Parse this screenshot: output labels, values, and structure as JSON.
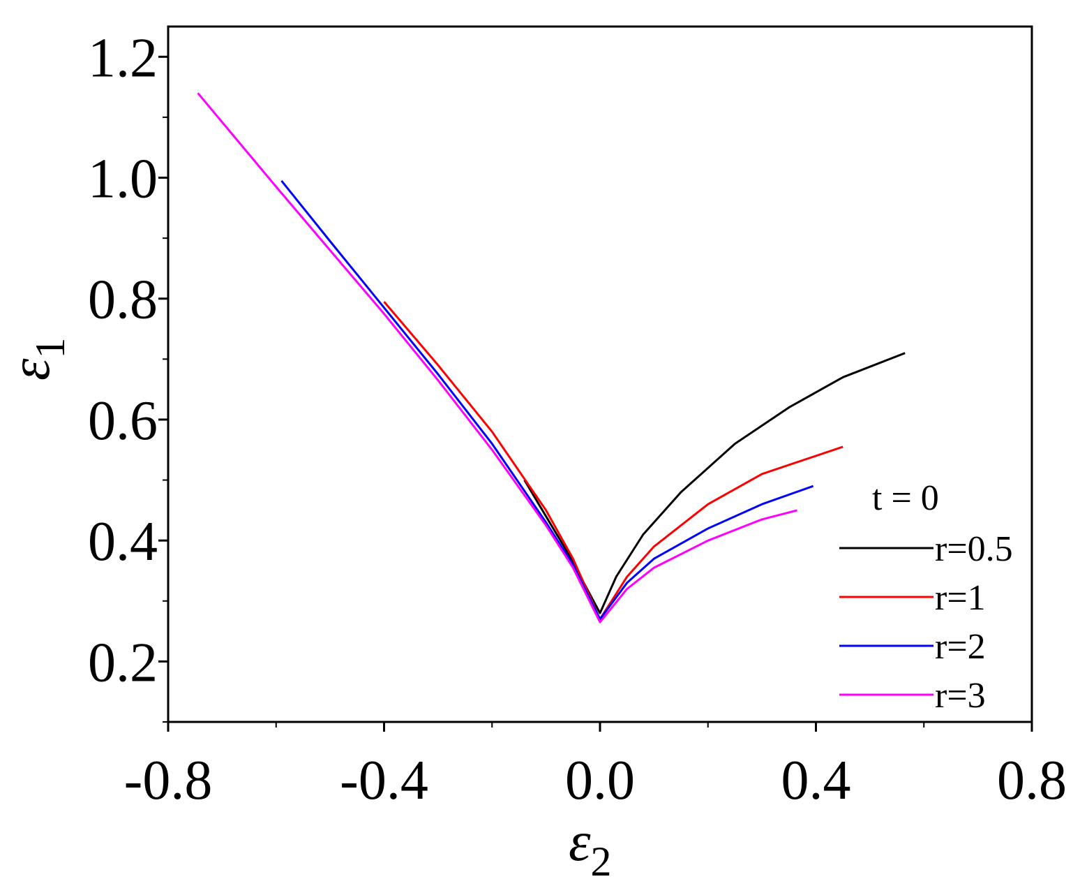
{
  "chart_data": {
    "type": "line",
    "xlabel": "ε",
    "xlabel_sub": "2",
    "ylabel": "ε",
    "ylabel_sub": "1",
    "xlim": [
      -0.8,
      0.8
    ],
    "ylim": [
      0.1,
      1.25
    ],
    "x_ticks": [
      -0.8,
      -0.4,
      0.0,
      0.4,
      0.8
    ],
    "x_tick_labels": [
      "-0.8",
      "-0.4",
      "0.0",
      "0.4",
      "0.8"
    ],
    "y_ticks": [
      0.2,
      0.4,
      0.6,
      0.8,
      1.0,
      1.2
    ],
    "y_tick_labels": [
      "0.2",
      "0.4",
      "0.6",
      "0.8",
      "1.0",
      "1.2"
    ],
    "grid": false,
    "legend_title": "t = 0",
    "legend_position": "bottom-right",
    "series": [
      {
        "name": "r=0.5",
        "color": "#000000",
        "x": [
          -0.14,
          -0.1,
          -0.06,
          -0.03,
          0.0,
          0.03,
          0.08,
          0.15,
          0.25,
          0.35,
          0.45,
          0.565
        ],
        "y": [
          0.5,
          0.44,
          0.38,
          0.33,
          0.28,
          0.34,
          0.41,
          0.48,
          0.56,
          0.62,
          0.67,
          0.71
        ]
      },
      {
        "name": "r=1",
        "color": "#ff0000",
        "x": [
          -0.4,
          -0.3,
          -0.2,
          -0.1,
          -0.05,
          0.0,
          0.05,
          0.1,
          0.2,
          0.3,
          0.45
        ],
        "y": [
          0.795,
          0.69,
          0.58,
          0.45,
          0.37,
          0.27,
          0.34,
          0.39,
          0.46,
          0.51,
          0.555
        ]
      },
      {
        "name": "r=2",
        "color": "#0000ff",
        "x": [
          -0.59,
          -0.5,
          -0.4,
          -0.3,
          -0.2,
          -0.1,
          -0.05,
          0.0,
          0.05,
          0.1,
          0.2,
          0.3,
          0.395
        ],
        "y": [
          0.995,
          0.895,
          0.785,
          0.675,
          0.56,
          0.43,
          0.36,
          0.27,
          0.33,
          0.37,
          0.42,
          0.46,
          0.49
        ]
      },
      {
        "name": "r=3",
        "color": "#ff00ff",
        "x": [
          -0.745,
          -0.6,
          -0.5,
          -0.4,
          -0.3,
          -0.2,
          -0.1,
          -0.05,
          0.0,
          0.05,
          0.1,
          0.2,
          0.3,
          0.365
        ],
        "y": [
          1.14,
          0.985,
          0.88,
          0.775,
          0.665,
          0.55,
          0.425,
          0.355,
          0.265,
          0.32,
          0.355,
          0.4,
          0.435,
          0.45
        ]
      }
    ]
  }
}
